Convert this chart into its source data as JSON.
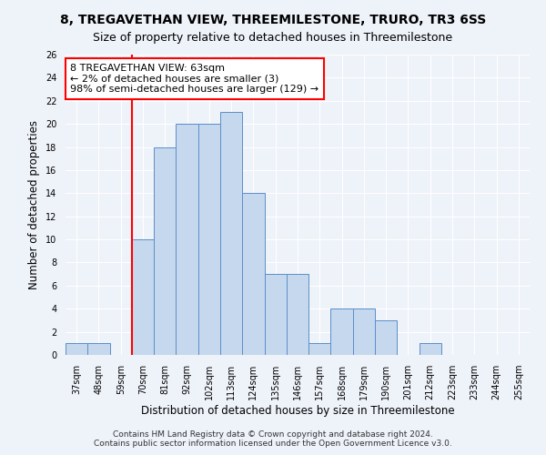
{
  "title1": "8, TREGAVETHAN VIEW, THREEMILESTONE, TRURO, TR3 6SS",
  "title2": "Size of property relative to detached houses in Threemilestone",
  "xlabel": "Distribution of detached houses by size in Threemilestone",
  "ylabel": "Number of detached properties",
  "categories": [
    "37sqm",
    "48sqm",
    "59sqm",
    "70sqm",
    "81sqm",
    "92sqm",
    "102sqm",
    "113sqm",
    "124sqm",
    "135sqm",
    "146sqm",
    "157sqm",
    "168sqm",
    "179sqm",
    "190sqm",
    "201sqm",
    "212sqm",
    "223sqm",
    "233sqm",
    "244sqm",
    "255sqm"
  ],
  "values": [
    1,
    1,
    0,
    10,
    18,
    20,
    20,
    21,
    14,
    7,
    7,
    1,
    4,
    4,
    3,
    0,
    1,
    0,
    0,
    0,
    0
  ],
  "bar_color": "#c5d8ed",
  "bar_edge_color": "#5b8fc9",
  "vline_x_index": 2,
  "vline_color": "red",
  "vline_x_offset": 0.5,
  "annotation_text": "8 TREGAVETHAN VIEW: 63sqm\n← 2% of detached houses are smaller (3)\n98% of semi-detached houses are larger (129) →",
  "annotation_box_color": "white",
  "annotation_box_edge": "red",
  "ylim": [
    0,
    26
  ],
  "yticks": [
    0,
    2,
    4,
    6,
    8,
    10,
    12,
    14,
    16,
    18,
    20,
    22,
    24,
    26
  ],
  "footnote1": "Contains HM Land Registry data © Crown copyright and database right 2024.",
  "footnote2": "Contains public sector information licensed under the Open Government Licence v3.0.",
  "bg_color": "#eef2f9",
  "plot_bg_color": "#eef2f9",
  "title1_fontsize": 10,
  "title2_fontsize": 9,
  "annotation_fontsize": 8,
  "axis_label_fontsize": 8.5,
  "tick_fontsize": 7,
  "footnote_fontsize": 6.5
}
